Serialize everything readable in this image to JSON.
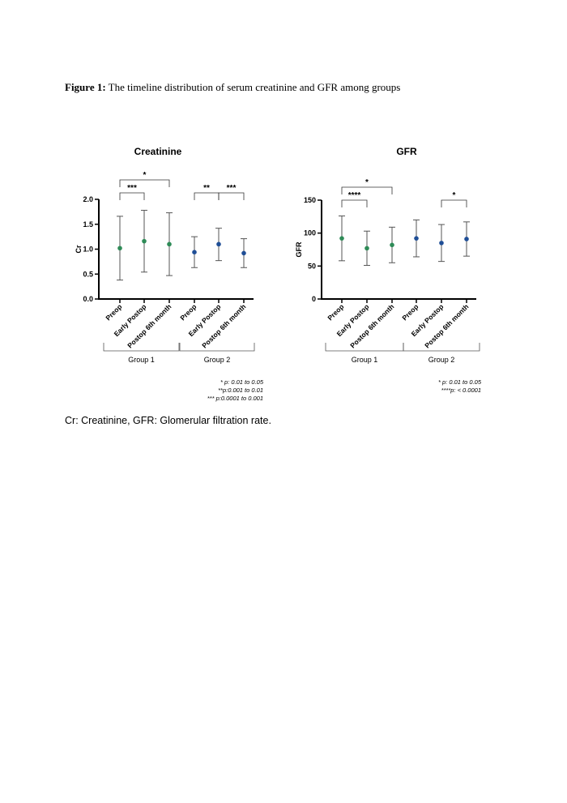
{
  "figure": {
    "label": "Figure 1:",
    "text": " The timeline distribution of serum creatinine and GFR among groups"
  },
  "footnote": "Cr: Creatinine, GFR: Glomerular filtration rate.",
  "colors": {
    "group1": "#2e8b57",
    "group2": "#1f4e96",
    "errbar": "#555555"
  },
  "chart_data": [
    {
      "type": "scatter",
      "title": "Creatinine",
      "ylabel": "Cr",
      "ylim": [
        0,
        2
      ],
      "yticks": [
        "0.0",
        "0.5",
        "1.0",
        "1.5",
        "2.0"
      ],
      "ytick_values": [
        0,
        0.5,
        1.0,
        1.5,
        2.0
      ],
      "categories": [
        "Preop",
        "Early Postop",
        "Postop 6th month",
        "Preop",
        "Early Postop",
        "Postop 6th month"
      ],
      "groups": [
        "Group 1",
        "Group 2"
      ],
      "series": [
        {
          "name": "Group 1",
          "mean": [
            1.02,
            1.16,
            1.1
          ],
          "lower": [
            0.38,
            0.54,
            0.47
          ],
          "upper": [
            1.66,
            1.78,
            1.73
          ]
        },
        {
          "name": "Group 2",
          "mean": [
            0.94,
            1.1,
            0.92
          ],
          "lower": [
            0.63,
            0.77,
            0.63
          ],
          "upper": [
            1.25,
            1.42,
            1.21
          ]
        }
      ],
      "significance": [
        {
          "from": 0,
          "to": 1,
          "label": "***"
        },
        {
          "from": 0,
          "to": 2,
          "label": "*"
        },
        {
          "from": 3,
          "to": 4,
          "label": "**"
        },
        {
          "from": 4,
          "to": 5,
          "label": "***"
        }
      ],
      "p_notes": [
        "* p: 0.01 to 0.05",
        "**p:0.001 to 0.01",
        "*** p:0.0001 to 0.001"
      ]
    },
    {
      "type": "scatter",
      "title": "GFR",
      "ylabel": "GFR",
      "ylim": [
        0,
        150
      ],
      "yticks": [
        "0",
        "50",
        "100",
        "150"
      ],
      "ytick_values": [
        0,
        50,
        100,
        150
      ],
      "categories": [
        "Preop",
        "Early Postop",
        "Postop 6th month",
        "Preop",
        "Early Postop",
        "Postop 6th month"
      ],
      "groups": [
        "Group 1",
        "Group 2"
      ],
      "series": [
        {
          "name": "Group 1",
          "mean": [
            92,
            77,
            82
          ],
          "lower": [
            58,
            51,
            55
          ],
          "upper": [
            126,
            103,
            109
          ]
        },
        {
          "name": "Group 2",
          "mean": [
            92,
            85,
            91
          ],
          "lower": [
            64,
            57,
            65
          ],
          "upper": [
            120,
            113,
            117
          ]
        }
      ],
      "significance": [
        {
          "from": 0,
          "to": 1,
          "label": "****"
        },
        {
          "from": 0,
          "to": 2,
          "label": "*"
        },
        {
          "from": 4,
          "to": 5,
          "label": "*"
        }
      ],
      "p_notes": [
        "* p: 0.01 to 0.05",
        "****p: < 0.0001"
      ]
    }
  ]
}
